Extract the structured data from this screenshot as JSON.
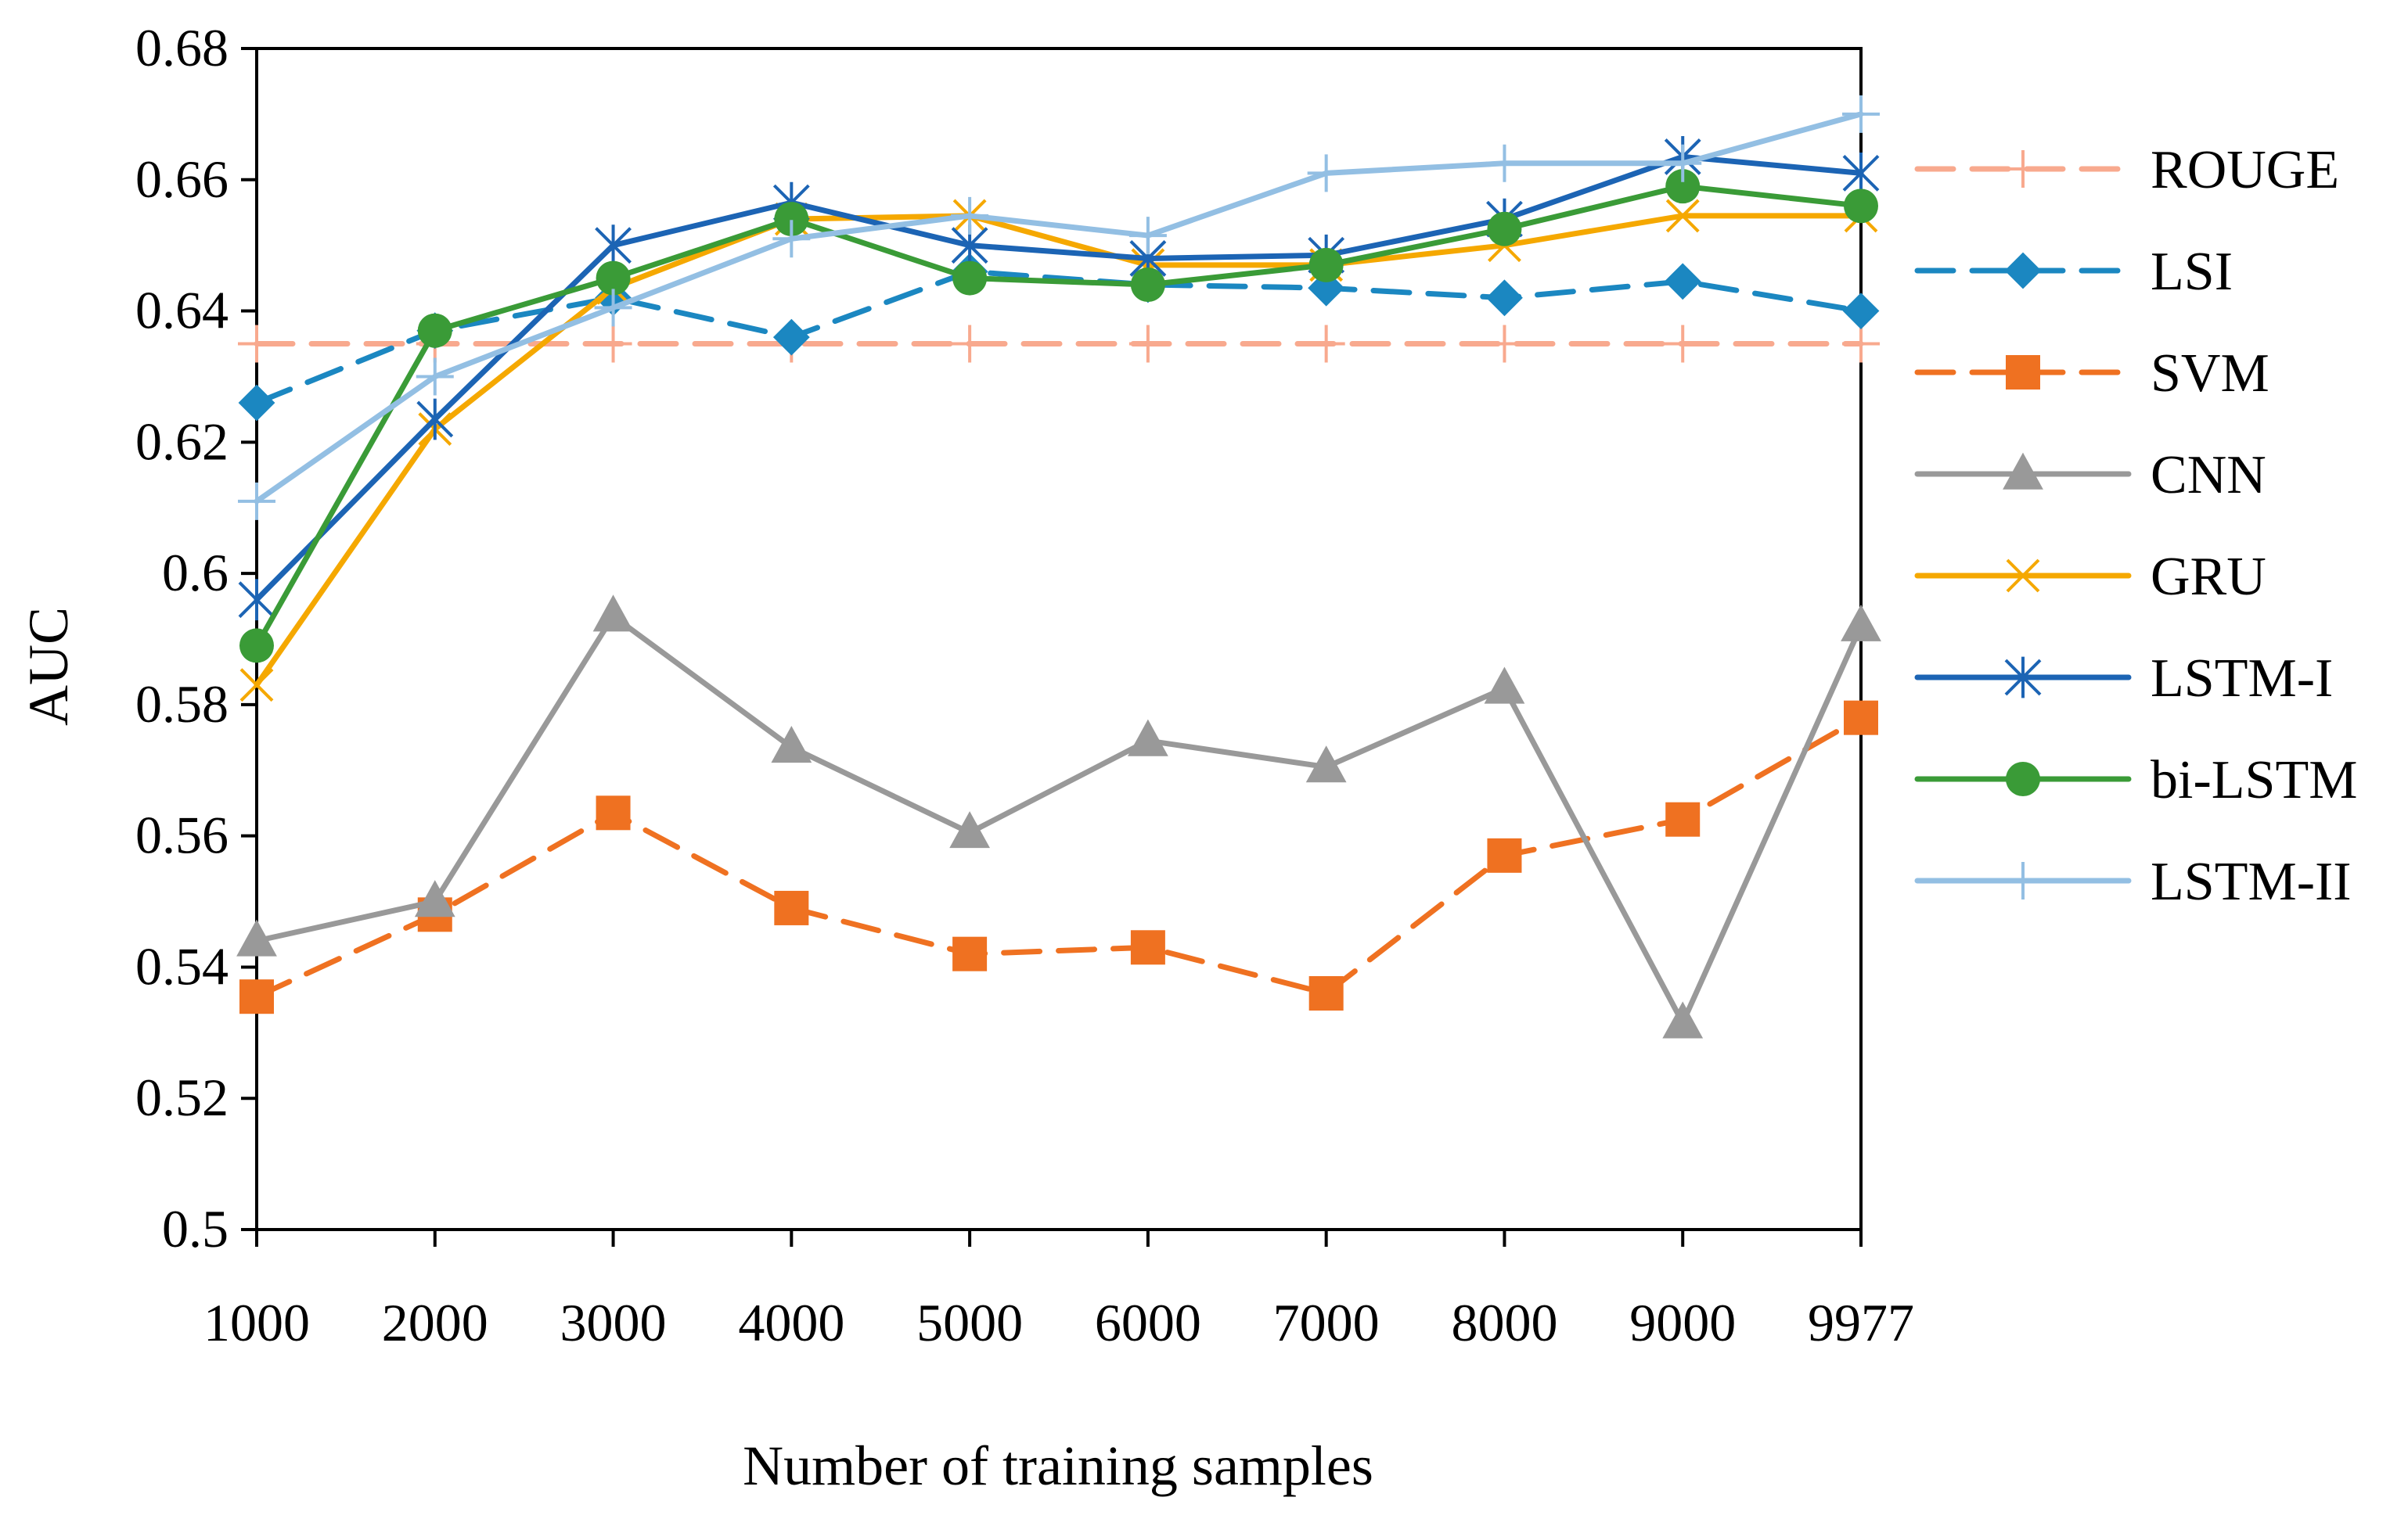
{
  "chart_data": {
    "type": "line",
    "title": "",
    "xlabel": "Number of training samples",
    "ylabel": "AUC",
    "categories": [
      "1000",
      "2000",
      "3000",
      "4000",
      "5000",
      "6000",
      "7000",
      "8000",
      "9000",
      "9977"
    ],
    "ylim": [
      0.5,
      0.68
    ],
    "yticks": [
      "0.5",
      "0.52",
      "0.54",
      "0.56",
      "0.58",
      "0.6",
      "0.62",
      "0.64",
      "0.66",
      "0.68"
    ],
    "ytick_values": [
      0.5,
      0.52,
      0.54,
      0.56,
      0.58,
      0.6,
      0.62,
      0.64,
      0.66,
      0.68
    ],
    "grid": false,
    "legend_position": "right",
    "series": [
      {
        "name": "ROUGE",
        "color": "#F8A98E",
        "dashed": true,
        "marker": "plus",
        "values": [
          0.635,
          0.635,
          0.635,
          0.635,
          0.635,
          0.635,
          0.635,
          0.635,
          0.635,
          0.635
        ]
      },
      {
        "name": "LSI",
        "color": "#1B87C1",
        "dashed": true,
        "marker": "diamond",
        "values": [
          0.626,
          0.637,
          0.642,
          0.636,
          0.646,
          0.644,
          0.6435,
          0.642,
          0.6445,
          0.64
        ]
      },
      {
        "name": "SVM",
        "color": "#EF7121",
        "dashed": true,
        "marker": "square",
        "values": [
          0.5355,
          0.548,
          0.5635,
          0.549,
          0.542,
          0.543,
          0.536,
          0.557,
          0.5625,
          0.578
        ]
      },
      {
        "name": "CNN",
        "color": "#999999",
        "dashed": false,
        "marker": "triangle",
        "values": [
          0.544,
          0.55,
          0.5935,
          0.5735,
          0.5605,
          0.5745,
          0.5705,
          0.5825,
          0.5315,
          0.592
        ]
      },
      {
        "name": "GRU",
        "color": "#F5A800",
        "dashed": false,
        "marker": "x",
        "values": [
          0.583,
          0.622,
          0.6435,
          0.654,
          0.6545,
          0.647,
          0.647,
          0.65,
          0.6545,
          0.6545
        ]
      },
      {
        "name": "LSTM-I",
        "color": "#1C64B4",
        "dashed": false,
        "marker": "asterisk",
        "values": [
          0.596,
          0.6235,
          0.65,
          0.6565,
          0.65,
          0.648,
          0.6485,
          0.654,
          0.6635,
          0.661
        ]
      },
      {
        "name": "bi-LSTM",
        "color": "#3A9B37",
        "dashed": false,
        "marker": "circle",
        "values": [
          0.589,
          0.637,
          0.645,
          0.654,
          0.645,
          0.644,
          0.647,
          0.6525,
          0.659,
          0.656
        ]
      },
      {
        "name": "LSTM-II",
        "color": "#93BFE3",
        "dashed": false,
        "marker": "plus",
        "values": [
          0.611,
          0.63,
          0.6405,
          0.651,
          0.6545,
          0.6515,
          0.661,
          0.6625,
          0.6625,
          0.67
        ]
      }
    ]
  }
}
